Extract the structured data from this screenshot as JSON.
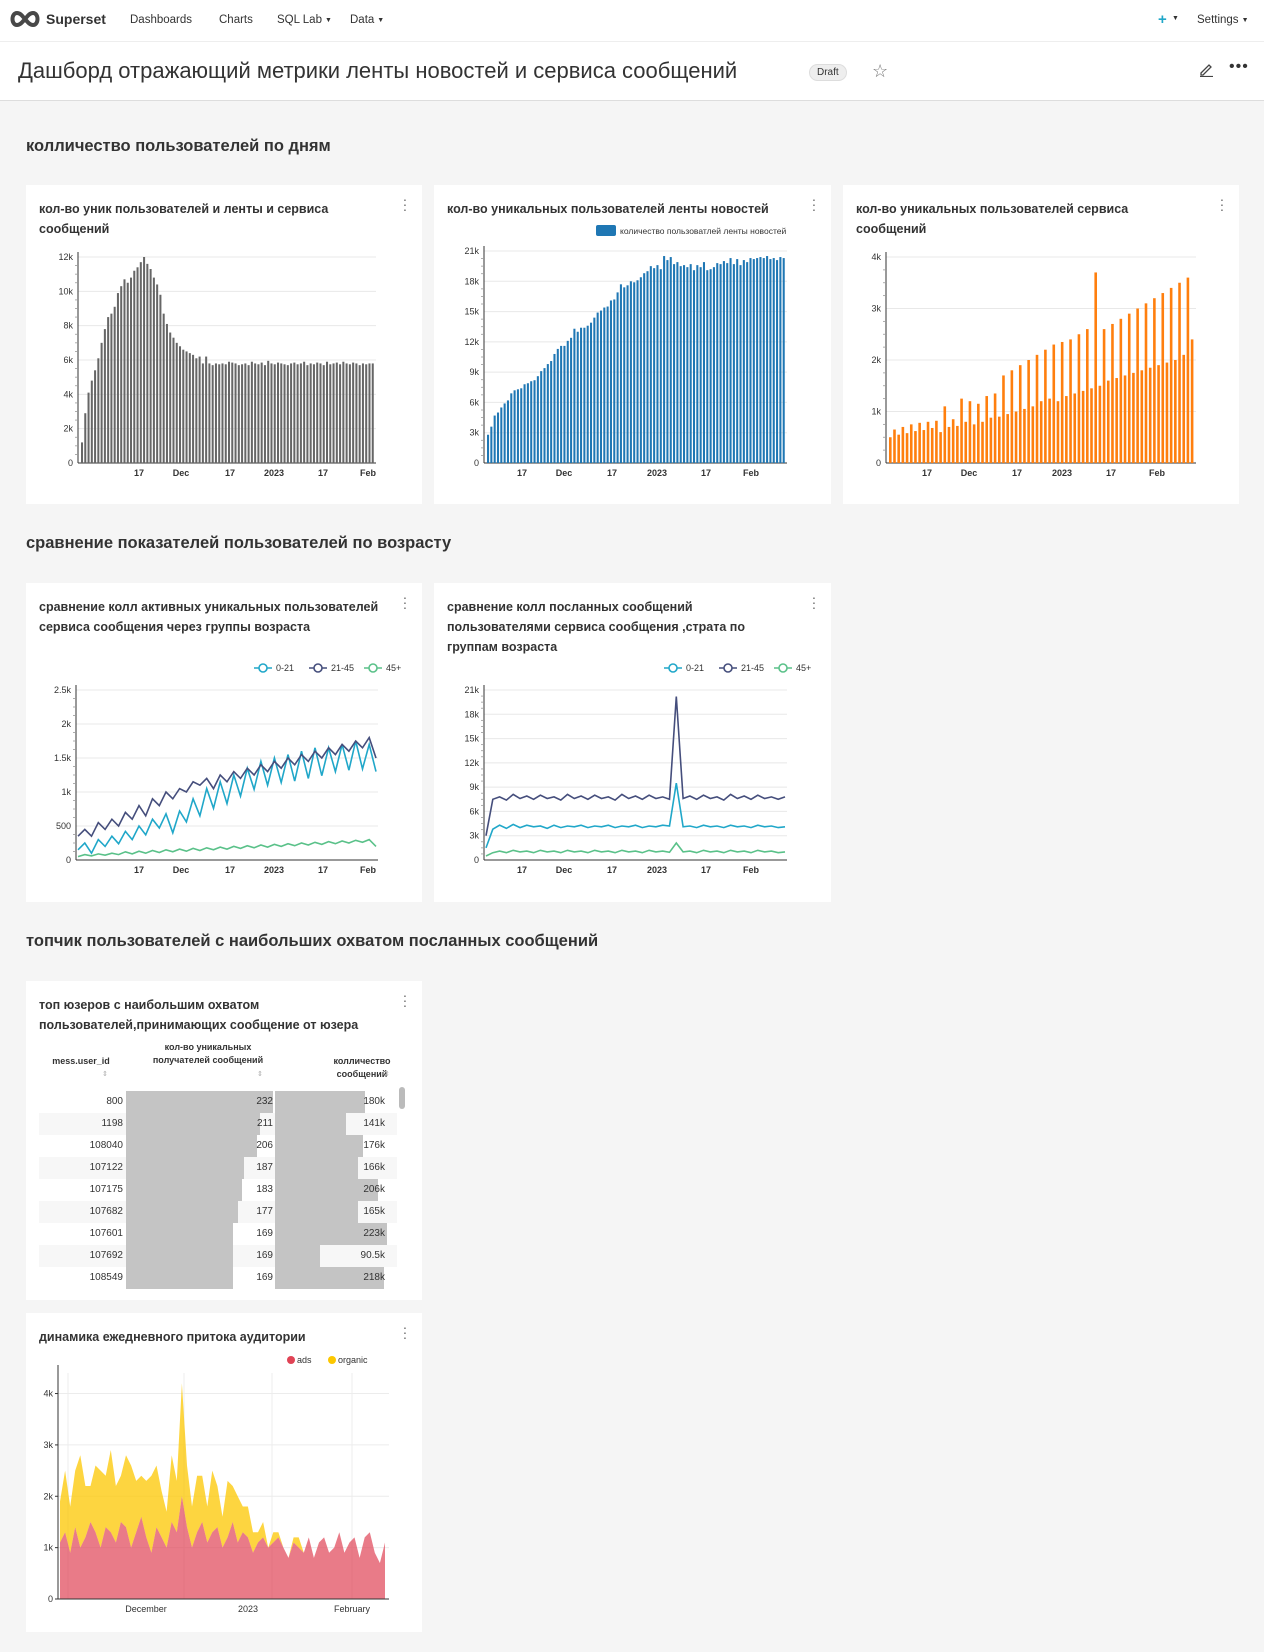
{
  "navbar": {
    "brand": "Superset",
    "items": [
      "Dashboards",
      "Charts",
      "SQL Lab",
      "Data"
    ],
    "settings_label": "Settings"
  },
  "header": {
    "title": "Дашборд отражающий метрики ленты новостей и сервиса сообщений",
    "badge": "Draft"
  },
  "sections": [
    "колличество пользователей по дням",
    "сравнение показателей пользователей по возрасту",
    "топчик пользователей с наибольших охватом посланных сообщений"
  ],
  "charts": {
    "c1": {
      "title": "кол-во уник пользователей и ленты и сервиса сообщений",
      "color": "#666666"
    },
    "c2": {
      "title": "кол-во уникальных пользователей ленты новостей",
      "legend": "количество пользоватлей ленты новостей",
      "color": "#1f77b4"
    },
    "c3": {
      "title": "кол-во уникальных пользователей сервиса сообщений",
      "color": "#ff7f0e"
    },
    "c4": {
      "title": "сравнение колл активных уникальных пользователей сервиса сообщения через группы возраста"
    },
    "c5": {
      "title": "сравнение колл посланных сообщений пользователями сервиса сообщения ,страта по группам возраста"
    },
    "c6": {
      "title": "топ юзеров с наибольшим охватом пользователей,принимающих сообщение от юзера"
    },
    "c7": {
      "title": "динамика ежедневного притока аудитории"
    }
  },
  "table": {
    "columns": [
      "mess.user_id",
      "кол-во уникальных получателей сообщений",
      "колличество сообщений"
    ],
    "rows": [
      {
        "id": "800",
        "recipients": 232,
        "recipients_label": "232",
        "messages": 180,
        "messages_label": "180k"
      },
      {
        "id": "1198",
        "recipients": 211,
        "recipients_label": "211",
        "messages": 141,
        "messages_label": "141k"
      },
      {
        "id": "108040",
        "recipients": 206,
        "recipients_label": "206",
        "messages": 176,
        "messages_label": "176k"
      },
      {
        "id": "107122",
        "recipients": 187,
        "recipients_label": "187",
        "messages": 166,
        "messages_label": "166k"
      },
      {
        "id": "107175",
        "recipients": 183,
        "recipients_label": "183",
        "messages": 206,
        "messages_label": "206k"
      },
      {
        "id": "107682",
        "recipients": 177,
        "recipients_label": "177",
        "messages": 165,
        "messages_label": "165k"
      },
      {
        "id": "107601",
        "recipients": 169,
        "recipients_label": "169",
        "messages": 223,
        "messages_label": "223k"
      },
      {
        "id": "107692",
        "recipients": 169,
        "recipients_label": "169",
        "messages": 90.5,
        "messages_label": "90.5k"
      },
      {
        "id": "108549",
        "recipients": 169,
        "recipients_label": "169",
        "messages": 218,
        "messages_label": "218k"
      }
    ]
  },
  "chart_data": [
    {
      "type": "bar",
      "title": "кол-во уник пользователей и ленты и сервиса сообщений",
      "ylim": [
        0,
        12000
      ],
      "yticks": [
        "0",
        "2k",
        "4k",
        "6k",
        "8k",
        "10k",
        "12k"
      ],
      "xticks": [
        "17",
        "Dec",
        "17",
        "2023",
        "17",
        "Feb"
      ],
      "values": [
        1200,
        2900,
        4100,
        4800,
        5400,
        6100,
        7000,
        7800,
        8500,
        8700,
        9100,
        9900,
        10300,
        10700,
        10500,
        10800,
        11200,
        11400,
        11700,
        12000,
        11600,
        11300,
        10800,
        10400,
        9800,
        8700,
        8100,
        7600,
        7300,
        7000,
        6800,
        6600,
        6500,
        6400,
        6300,
        6100,
        6200,
        5800,
        6200,
        5800,
        5700,
        5800,
        5750,
        5800,
        5750,
        5900,
        5850,
        5800,
        5700,
        5750,
        5800,
        5700,
        5900,
        5800,
        5750,
        5850,
        5700,
        5950,
        5800,
        5750,
        5850,
        5800,
        5750,
        5700,
        5800,
        5850,
        5750,
        5800,
        5900,
        5700,
        5800,
        5750,
        5850,
        5800,
        5700,
        5900,
        5750,
        5800,
        5850,
        5750,
        5900,
        5800,
        5750,
        5850,
        5800,
        5700,
        5800,
        5750,
        5800,
        5800
      ]
    },
    {
      "type": "bar",
      "title": "кол-во уникальных пользователей ленты новостей",
      "series": [
        {
          "name": "количество пользоватлей ленты новостей"
        }
      ],
      "ylim": [
        0,
        21000
      ],
      "yticks": [
        "0",
        "3k",
        "6k",
        "9k",
        "12k",
        "15k",
        "18k",
        "21k"
      ],
      "xticks": [
        "17",
        "Dec",
        "17",
        "2023",
        "17",
        "Feb"
      ],
      "values": [
        2800,
        3600,
        4700,
        5000,
        5500,
        5900,
        6200,
        6900,
        7200,
        7300,
        7400,
        7800,
        7900,
        8100,
        8200,
        8600,
        9100,
        9400,
        9800,
        10100,
        10800,
        11300,
        11600,
        11600,
        12100,
        12400,
        13300,
        13000,
        13400,
        13400,
        13600,
        13900,
        14400,
        14900,
        15100,
        15400,
        15500,
        16100,
        16200,
        16900,
        17700,
        17400,
        17600,
        18000,
        17900,
        18100,
        18400,
        18800,
        19000,
        19500,
        19300,
        19600,
        19200,
        20500,
        20100,
        20400,
        19700,
        19900,
        19500,
        19600,
        19400,
        19700,
        19100,
        19600,
        19400,
        19900,
        19100,
        19200,
        19400,
        19800,
        19700,
        20000,
        19800,
        20300,
        19700,
        20200,
        19600,
        20100,
        19900,
        20300,
        20200,
        20300,
        20400,
        20300,
        20500,
        20200,
        20300,
        20100,
        20400,
        20300
      ]
    },
    {
      "type": "bar",
      "title": "кол-во уникальных пользователей сервиса сообщений",
      "ylim": [
        0,
        4000
      ],
      "yticks": [
        "0",
        "1k",
        "2k",
        "3k",
        "4k"
      ],
      "xticks": [
        "17",
        "Dec",
        "17",
        "2023",
        "17",
        "Feb"
      ],
      "values": [
        500,
        650,
        550,
        700,
        580,
        750,
        620,
        780,
        640,
        800,
        680,
        820,
        600,
        1100,
        700,
        850,
        720,
        1250,
        800,
        1200,
        750,
        1150,
        800,
        1300,
        880,
        1350,
        900,
        1700,
        950,
        1800,
        1000,
        1900,
        1050,
        2000,
        1100,
        2100,
        1200,
        2200,
        1250,
        2300,
        1200,
        2350,
        1300,
        2400,
        1350,
        2500,
        1400,
        2600,
        1450,
        3700,
        1500,
        2600,
        1600,
        2700,
        1650,
        2800,
        1700,
        2900,
        1750,
        3000,
        1800,
        3100,
        1850,
        3200,
        1900,
        3300,
        1950,
        3400,
        2000,
        3500,
        2100,
        3600,
        2400
      ]
    },
    {
      "type": "line",
      "title": "сравнение колл активных уникальных пользователей сервиса сообщения через группы возраста",
      "ylim": [
        0,
        2500
      ],
      "yticks": [
        "0",
        "500",
        "1k",
        "1.5k",
        "2k",
        "2.5k"
      ],
      "xticks": [
        "17",
        "Dec",
        "17",
        "2023",
        "17",
        "Feb"
      ],
      "series": [
        {
          "name": "0-21",
          "color": "#20a7c9",
          "values": [
            150,
            250,
            100,
            300,
            200,
            350,
            240,
            420,
            300,
            500,
            370,
            600,
            470,
            680,
            400,
            720,
            560,
            900,
            650,
            1050,
            760,
            1150,
            830,
            1250,
            940,
            1350,
            1040,
            1450,
            1100,
            1500,
            1140,
            1550,
            1160,
            1600,
            1200,
            1650,
            1240,
            1650,
            1300,
            1700,
            1320,
            1750,
            1340,
            1700,
            1300
          ]
        },
        {
          "name": "21-45",
          "color": "#454e7c",
          "values": [
            350,
            450,
            350,
            550,
            450,
            600,
            500,
            700,
            600,
            800,
            650,
            900,
            800,
            1000,
            900,
            1050,
            1000,
            1150,
            1100,
            1200,
            1050,
            1250,
            1150,
            1300,
            1200,
            1350,
            1250,
            1400,
            1300,
            1450,
            1350,
            1500,
            1400,
            1550,
            1450,
            1600,
            1500,
            1650,
            1550,
            1700,
            1600,
            1750,
            1650,
            1800,
            1500
          ]
        },
        {
          "name": "45+",
          "color": "#5ac189",
          "values": [
            50,
            80,
            60,
            90,
            70,
            100,
            80,
            120,
            90,
            130,
            100,
            140,
            110,
            150,
            120,
            160,
            130,
            170,
            140,
            180,
            150,
            190,
            160,
            200,
            170,
            210,
            180,
            220,
            190,
            230,
            200,
            240,
            210,
            250,
            220,
            260,
            230,
            270,
            240,
            280,
            250,
            290,
            260,
            300,
            200
          ]
        }
      ]
    },
    {
      "type": "line",
      "title": "сравнение колл посланных сообщений пользователями сервиса сообщения ,страта по группам возраста",
      "ylim": [
        0,
        21000
      ],
      "yticks": [
        "0",
        "3k",
        "6k",
        "9k",
        "12k",
        "15k",
        "18k",
        "21k"
      ],
      "xticks": [
        "17",
        "Dec",
        "17",
        "2023",
        "17",
        "Feb"
      ],
      "series": [
        {
          "name": "0-21",
          "color": "#20a7c9",
          "values": [
            1500,
            3800,
            4300,
            3900,
            4400,
            4000,
            4300,
            4100,
            4200,
            3900,
            4300,
            4000,
            4200,
            4100,
            4300,
            4000,
            4200,
            4100,
            4300,
            4000,
            4200,
            4100,
            4300,
            4000,
            4200,
            4100,
            4300,
            4200,
            9500,
            4100,
            4200,
            4000,
            4300,
            4100,
            4200,
            4000,
            4300,
            4100,
            4200,
            4000,
            4300,
            4100,
            4200,
            4000,
            4100
          ]
        },
        {
          "name": "21-45",
          "color": "#454e7c",
          "values": [
            3000,
            7500,
            7800,
            7400,
            8100,
            7600,
            7900,
            7500,
            8000,
            7600,
            7800,
            7400,
            8100,
            7600,
            7900,
            7500,
            8000,
            7600,
            7800,
            7400,
            8100,
            7600,
            7900,
            7500,
            8000,
            7600,
            7800,
            7500,
            20200,
            7600,
            7900,
            7500,
            8000,
            7600,
            7800,
            7400,
            8100,
            7600,
            7900,
            7500,
            8000,
            7600,
            7800,
            7500,
            7800
          ]
        },
        {
          "name": "45+",
          "color": "#5ac189",
          "values": [
            500,
            900,
            1100,
            900,
            1200,
            1000,
            1100,
            900,
            1200,
            1000,
            1100,
            900,
            1200,
            1000,
            1100,
            900,
            1200,
            1000,
            1100,
            900,
            1200,
            1000,
            1100,
            900,
            1200,
            1000,
            1100,
            950,
            2100,
            1000,
            1100,
            900,
            1200,
            1000,
            1100,
            900,
            1200,
            1000,
            1100,
            900,
            1200,
            1000,
            1100,
            900,
            1000
          ]
        }
      ]
    },
    {
      "type": "area",
      "title": "динамика ежедневного притока аудитории",
      "stacked": true,
      "ylim": [
        0,
        4400
      ],
      "yticks": [
        "0",
        "1k",
        "2k",
        "3k",
        "4k"
      ],
      "xticks": [
        "December",
        "2023",
        "February"
      ],
      "series": [
        {
          "name": "ads",
          "color": "#e04355",
          "values": [
            1100,
            1300,
            900,
            1400,
            1000,
            1200,
            1500,
            1300,
            1000,
            1400,
            1300,
            1100,
            1500,
            1400,
            1000,
            1300,
            1600,
            1200,
            900,
            1400,
            1200,
            1000,
            1500,
            1300,
            2000,
            1400,
            1000,
            1300,
            1500,
            1100,
            1300,
            1400,
            1000,
            1200,
            1500,
            1100,
            1300,
            1200,
            900,
            1100,
            1200,
            1000,
            1100,
            1200,
            1000,
            800,
            1100,
            1000,
            900,
            1200,
            800,
            1100,
            1200,
            900,
            1000,
            1300,
            900,
            1100,
            1200,
            800,
            1200,
            1300,
            900,
            700,
            1100
          ]
        },
        {
          "name": "organic",
          "color": "#fcc700",
          "values": [
            800,
            1200,
            900,
            1100,
            1800,
            1000,
            700,
            1300,
            1500,
            1000,
            1600,
            1100,
            900,
            1400,
            1600,
            1000,
            800,
            1100,
            1500,
            1200,
            900,
            700,
            1300,
            1000,
            2200,
            1200,
            800,
            1100,
            900,
            700,
            1200,
            800,
            600,
            1100,
            700,
            900,
            500,
            600,
            400,
            200,
            300,
            0,
            200,
            100,
            0,
            0,
            100,
            200,
            0,
            0,
            0,
            0,
            0,
            0,
            0,
            0,
            0,
            0,
            0,
            0,
            0,
            0,
            0,
            0,
            0
          ]
        }
      ]
    }
  ]
}
